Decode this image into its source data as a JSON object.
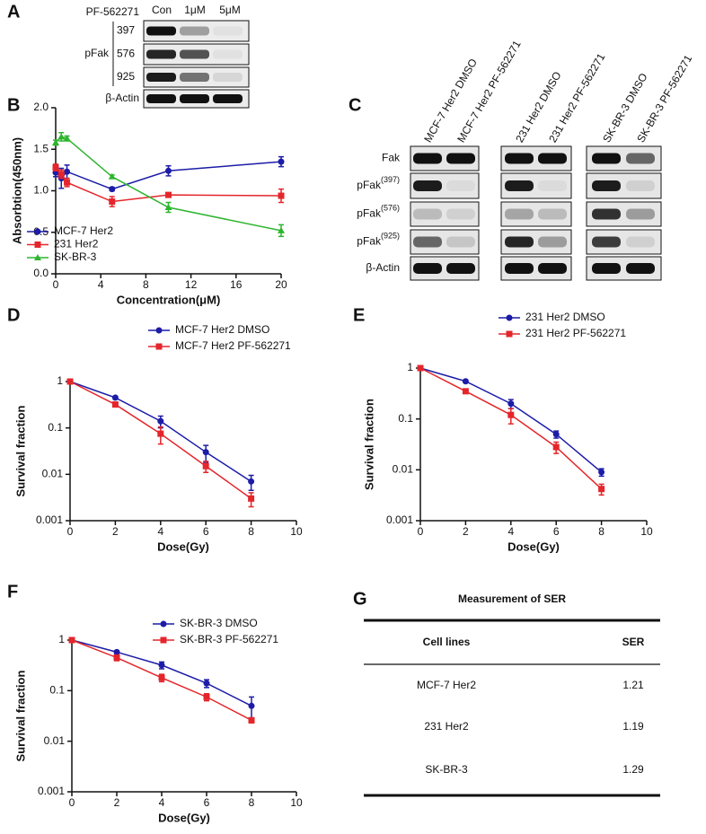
{
  "panel_labels": [
    "A",
    "B",
    "C",
    "D",
    "E",
    "F",
    "G"
  ],
  "blot_a": {
    "treatment": "PF-562271",
    "lanes": [
      "Con",
      "1μM",
      "5μM"
    ],
    "group": "pFak",
    "rows": [
      "397",
      "576",
      "925",
      "β-Actin"
    ]
  },
  "blot_c": {
    "lanes": [
      "MCF-7 Her2 DMSO",
      "MCF-7 Her2 PF-562271",
      "231 Her2 DMSO",
      "231 Her2 PF-562271",
      "SK-BR-3 DMSO",
      "SK-BR-3 PF-562271"
    ],
    "rows": [
      {
        "name": "Fak"
      },
      {
        "name": "pFak",
        "sup": "(397)"
      },
      {
        "name": "pFak",
        "sup": "(576)"
      },
      {
        "name": "pFak",
        "sup": "(925)"
      },
      {
        "name": "β-Actin"
      }
    ]
  },
  "chart_data": [
    {
      "type": "line",
      "x_label": "Concentration(μM)",
      "y_label": "Absorbtion(450nm)",
      "legend": "lower-left",
      "xlim": [
        0,
        20
      ],
      "xticks": [
        0,
        4,
        8,
        12,
        16,
        20
      ],
      "ylim": [
        0,
        2
      ],
      "yticks": [
        {
          "value": 0,
          "label": "0.0"
        },
        0.5,
        {
          "value": 1,
          "label": "1.0"
        },
        1.5,
        {
          "value": 2,
          "label": "2.0"
        }
      ],
      "x": [
        0,
        0.5,
        1,
        5,
        10,
        20
      ],
      "series": [
        {
          "name": "MCF-7 Her2",
          "color": "#1c1ca8",
          "marker": "circle",
          "values": [
            1.22,
            1.15,
            1.23,
            1.02,
            1.24,
            1.35
          ],
          "errors": [
            0.05,
            0.12,
            0.08,
            0.02,
            0.06,
            0.06
          ]
        },
        {
          "name": "231 Her2",
          "color": "#e4262b",
          "marker": "square",
          "values": [
            1.28,
            1.2,
            1.1,
            0.87,
            0.95,
            0.94
          ],
          "errors": [
            0.04,
            0.05,
            0.05,
            0.06,
            0.02,
            0.08
          ]
        },
        {
          "name": "SK-BR-3",
          "color": "#2db52d",
          "marker": "triangle",
          "values": [
            1.58,
            1.65,
            1.63,
            1.17,
            0.8,
            0.52
          ],
          "errors": [
            0.03,
            0.05,
            0.03,
            0.02,
            0.06,
            0.07
          ]
        }
      ]
    },
    {
      "type": "line",
      "x_label": "Dose(Gy)",
      "y_label": "Survival fraction",
      "legend": "upper-center",
      "log_y": true,
      "xlim": [
        0,
        10
      ],
      "xticks": [
        0,
        2,
        4,
        6,
        8,
        10
      ],
      "ylim": [
        0.001,
        1
      ],
      "yticks": [
        0.001,
        0.01,
        0.1,
        1
      ],
      "x": [
        0,
        2,
        4,
        6,
        8
      ],
      "series": [
        {
          "name": "MCF-7 Her2 DMSO",
          "color": "#1c1ca8",
          "marker": "circle",
          "values": [
            1,
            0.45,
            0.14,
            0.03,
            0.007
          ],
          "errors": [
            0,
            0.03,
            0.04,
            0.012,
            0.0025
          ]
        },
        {
          "name": "MCF-7 Her2 PF-562271",
          "color": "#e4262b",
          "marker": "square",
          "values": [
            1,
            0.32,
            0.075,
            0.015,
            0.003
          ],
          "errors": [
            0,
            0.03,
            0.03,
            0.004,
            0.001
          ]
        }
      ]
    },
    {
      "type": "line",
      "x_label": "Dose(Gy)",
      "y_label": "Survival fraction",
      "legend": "upper-center",
      "log_y": true,
      "xlim": [
        0,
        10
      ],
      "xticks": [
        0,
        2,
        4,
        6,
        8,
        10
      ],
      "ylim": [
        0.001,
        1
      ],
      "yticks": [
        0.001,
        0.01,
        0.1,
        1
      ],
      "x": [
        0,
        2,
        4,
        6,
        8
      ],
      "series": [
        {
          "name": "231 Her2 DMSO",
          "color": "#1c1ca8",
          "marker": "circle",
          "values": [
            1,
            0.55,
            0.2,
            0.05,
            0.009
          ],
          "errors": [
            0,
            0.03,
            0.04,
            0.008,
            0.0015
          ]
        },
        {
          "name": "231 Her2 PF-562271",
          "color": "#e4262b",
          "marker": "square",
          "values": [
            1,
            0.35,
            0.12,
            0.028,
            0.0042
          ],
          "errors": [
            0,
            0.02,
            0.04,
            0.007,
            0.001
          ]
        }
      ]
    },
    {
      "type": "line",
      "x_label": "Dose(Gy)",
      "y_label": "Survival fraction",
      "legend": "upper-center",
      "log_y": true,
      "xlim": [
        0,
        10
      ],
      "xticks": [
        0,
        2,
        4,
        6,
        8,
        10
      ],
      "ylim": [
        0.001,
        1
      ],
      "yticks": [
        0.001,
        0.01,
        0.1,
        1
      ],
      "x": [
        0,
        2,
        4,
        6,
        8
      ],
      "series": [
        {
          "name": "SK-BR-3 DMSO",
          "color": "#1c1ca8",
          "marker": "circle",
          "values": [
            1,
            0.58,
            0.32,
            0.14,
            0.05
          ],
          "errors": [
            0,
            0.04,
            0.05,
            0.025,
            0.025
          ]
        },
        {
          "name": "SK-BR-3 PF-562271",
          "color": "#e4262b",
          "marker": "square",
          "values": [
            1,
            0.45,
            0.18,
            0.075,
            0.026
          ],
          "errors": [
            0,
            0.06,
            0.03,
            0.012,
            0.003
          ]
        }
      ]
    }
  ],
  "table_g": {
    "title": "Measurement of SER",
    "header": [
      "Cell lines",
      "SER"
    ],
    "rows": [
      [
        "MCF-7 Her2",
        1.21
      ],
      [
        "231 Her2",
        1.19
      ],
      [
        "SK-BR-3",
        1.29
      ]
    ]
  }
}
